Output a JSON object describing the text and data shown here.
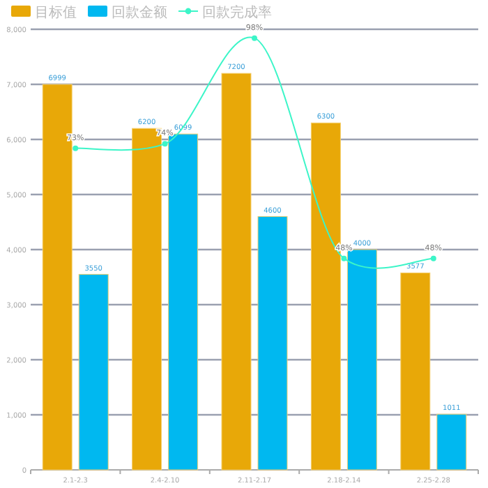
{
  "chart_data": {
    "type": "bar",
    "categories": [
      "2.1-2.3",
      "2.4-2.10",
      "2.11-2.17",
      "2.18-2.14",
      "2.25-2.28"
    ],
    "series": [
      {
        "name": "目标值",
        "color": "#e8a808",
        "values": [
          6999,
          6200,
          7200,
          6300,
          3577
        ]
      },
      {
        "name": "回款金额",
        "color": "#00b8f0",
        "values": [
          3550,
          6099,
          4600,
          4000,
          1011
        ]
      },
      {
        "name": "回款完成率",
        "type": "line",
        "axis": "y2",
        "color": "#3cf5c8",
        "marker": "circle",
        "values": [
          73,
          74,
          98,
          48,
          48
        ],
        "value_labels": [
          "73%",
          "74%",
          "98%",
          "48%",
          "48%"
        ]
      }
    ],
    "ylim": [
      0,
      8000
    ],
    "yticks": [
      0,
      {
        "value": 1000,
        "label": "1,000"
      },
      {
        "value": 2000,
        "label": "2,000"
      },
      {
        "value": 3000,
        "label": "3,000"
      },
      {
        "value": 4000,
        "label": "4,000"
      },
      {
        "value": 5000,
        "label": "5,000"
      },
      {
        "value": 6000,
        "label": "6,000"
      },
      {
        "value": 7000,
        "label": "7,000"
      },
      {
        "value": 8000,
        "label": "8,000"
      }
    ],
    "y2lim": [
      0,
      100
    ],
    "tick_labels": "xy",
    "grid": "y",
    "legend": "top left",
    "data_labels": true
  }
}
